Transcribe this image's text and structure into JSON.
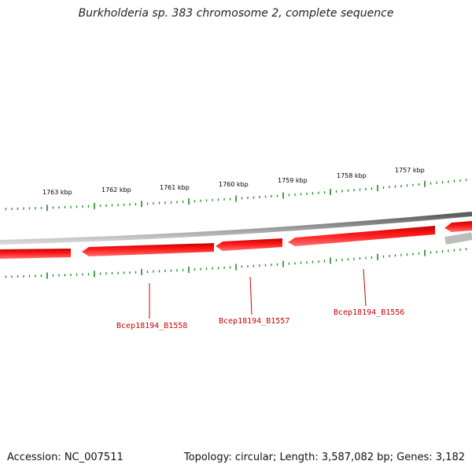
{
  "title": "Burkholderia sp. 383 chromosome 2, complete sequence",
  "ruler": {
    "labels": [
      "1763 kbp",
      "1762 kbp",
      "1761 kbp",
      "1760 kbp",
      "1759 kbp",
      "1758 kbp",
      "1757 kbp"
    ],
    "tick_color": "#1a8a1a"
  },
  "backbone_color": "#7a7a7a",
  "genes": {
    "color": "#ee0000",
    "labels": [
      "Bcep18194_B1558",
      "Bcep18194_B1557",
      "Bcep18194_B1556"
    ],
    "label_color": "#cc0000"
  },
  "footer": {
    "accession": "Accession: NC_007511",
    "summary": "Topology: circular; Length: 3,587,082 bp; Genes: 3,182"
  }
}
